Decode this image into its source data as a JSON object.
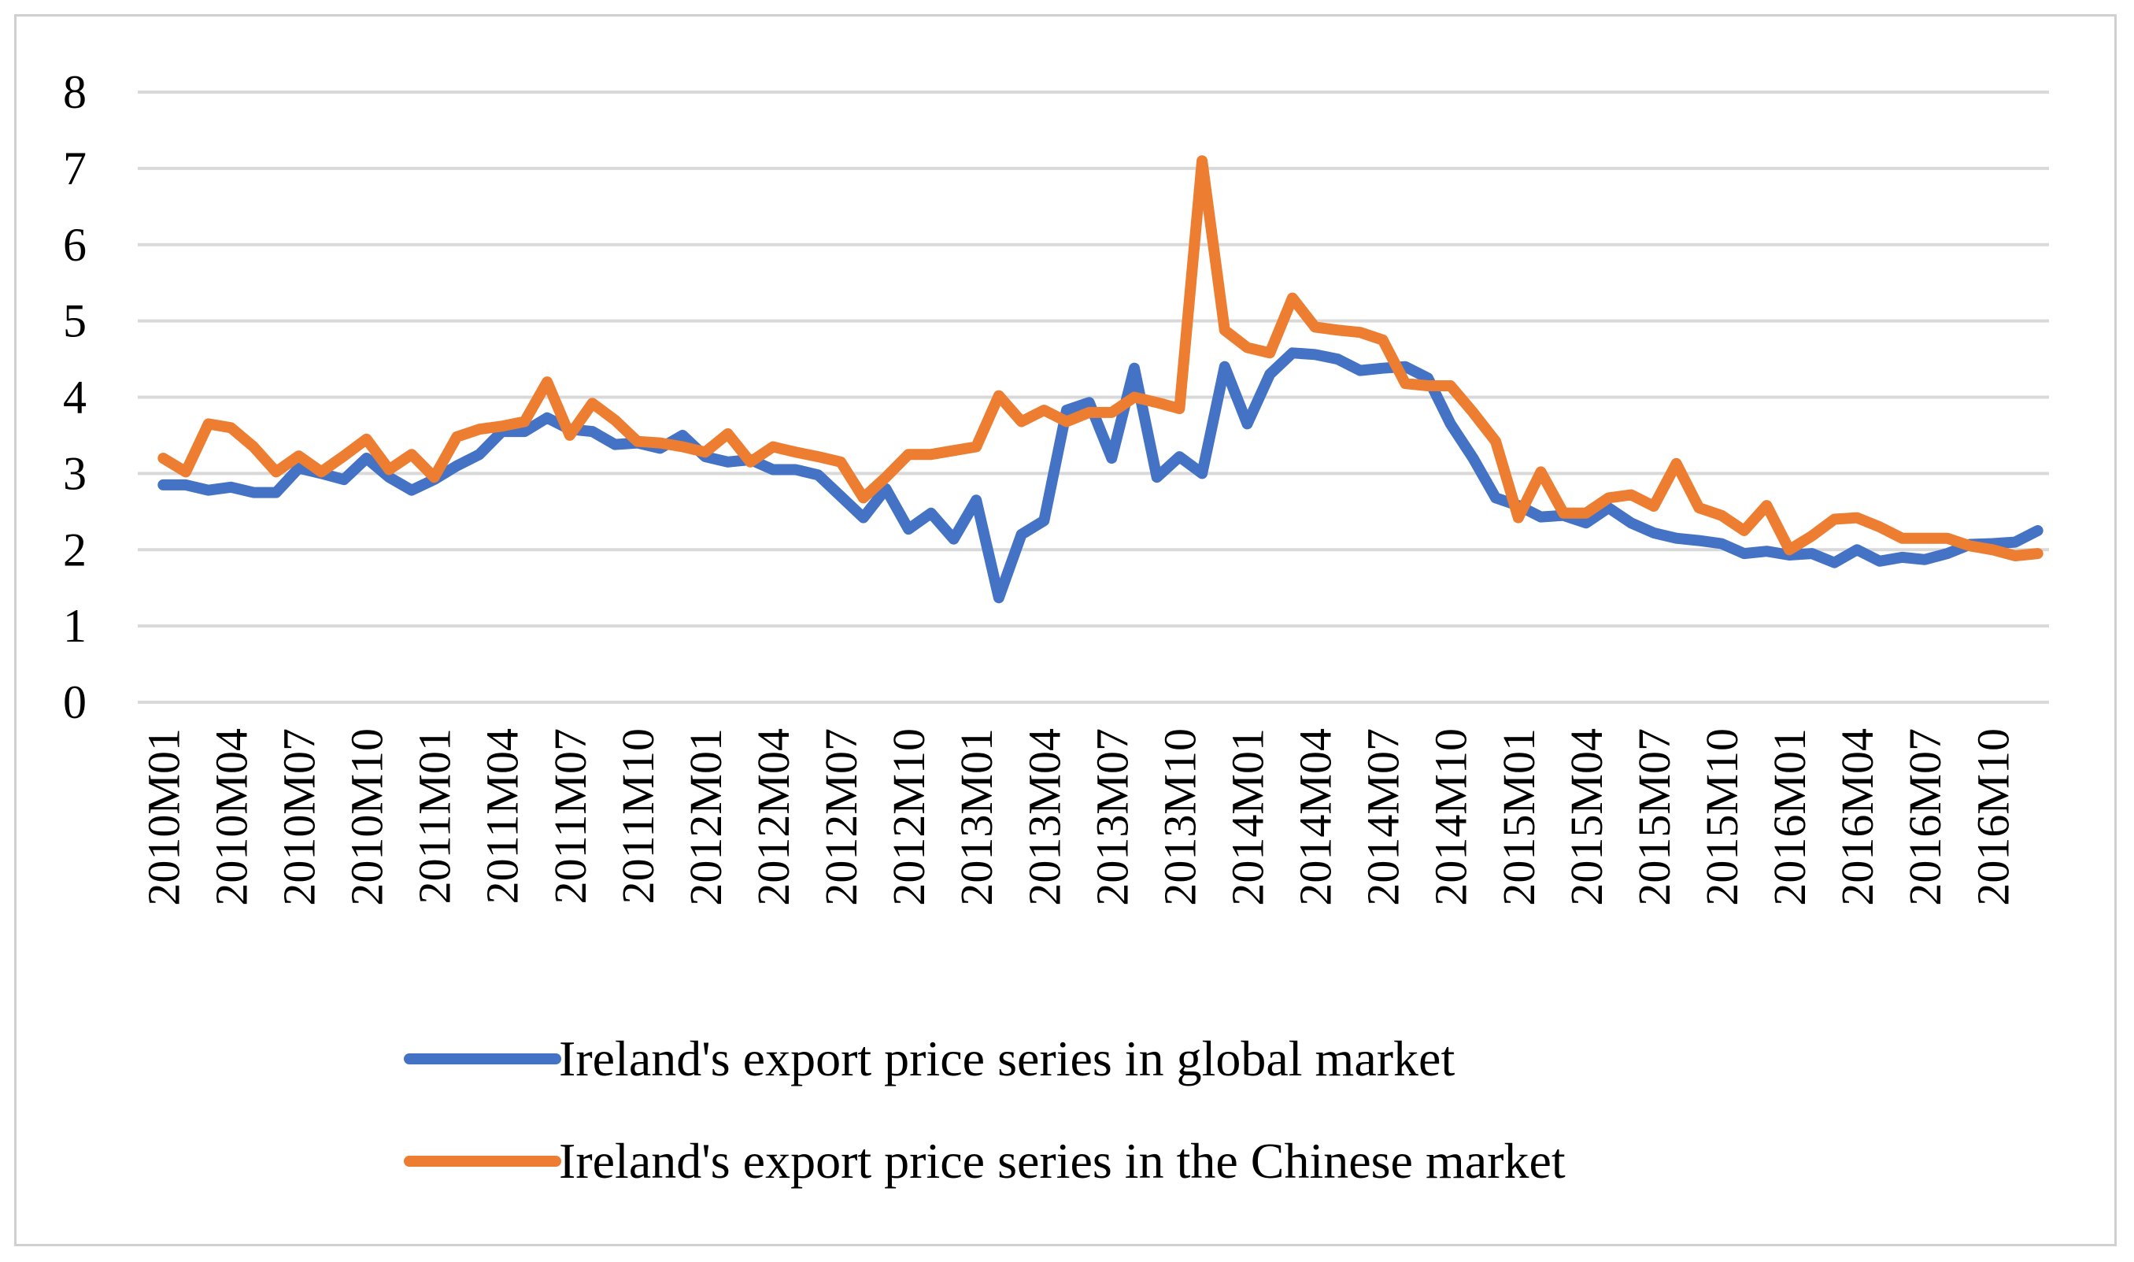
{
  "chart_data": {
    "type": "line",
    "title": "",
    "xlabel": "",
    "ylabel": "",
    "ylim": [
      0,
      8
    ],
    "yticks": [
      "0",
      "1",
      "2",
      "3",
      "4",
      "5",
      "6",
      "7",
      "8"
    ],
    "grid": true,
    "legend_position": "bottom",
    "x_tick_labels": [
      "2010M01",
      "2010M04",
      "2010M07",
      "2010M10",
      "2011M01",
      "2011M04",
      "2011M07",
      "2011M10",
      "2012M01",
      "2012M04",
      "2012M07",
      "2012M10",
      "2013M01",
      "2013M04",
      "2013M07",
      "2013M10",
      "2014M01",
      "2014M04",
      "2014M07",
      "2014M10",
      "2015M01",
      "2015M04",
      "2015M07",
      "2015M10",
      "2016M01",
      "2016M04",
      "2016M07",
      "2016M10"
    ],
    "x_tick_step": 3,
    "x_count": 84,
    "series": [
      {
        "name": "Ireland's export price series in global market",
        "color": "#4472C4",
        "values": [
          2.85,
          2.85,
          2.78,
          2.82,
          2.75,
          2.75,
          3.07,
          3.0,
          2.92,
          3.2,
          2.95,
          2.78,
          2.92,
          3.1,
          3.25,
          3.55,
          3.55,
          3.73,
          3.58,
          3.55,
          3.38,
          3.4,
          3.33,
          3.5,
          3.22,
          3.15,
          3.18,
          3.05,
          3.05,
          2.98,
          2.7,
          2.42,
          2.8,
          2.27,
          2.48,
          2.14,
          2.65,
          1.37,
          2.2,
          2.38,
          3.83,
          3.93,
          3.2,
          4.38,
          2.95,
          3.22,
          3.0,
          4.4,
          3.65,
          4.3,
          4.58,
          4.56,
          4.5,
          4.35,
          4.38,
          4.4,
          4.25,
          3.65,
          3.2,
          2.68,
          2.58,
          2.43,
          2.45,
          2.35,
          2.55,
          2.35,
          2.22,
          2.15,
          2.12,
          2.08,
          1.95,
          1.98,
          1.93,
          1.95,
          1.83,
          2.0,
          1.85,
          1.9,
          1.87,
          1.95,
          2.07,
          2.08,
          2.1,
          2.25
        ]
      },
      {
        "name": "Ireland's export price series in the Chinese market",
        "color": "#ED7D31",
        "values": [
          3.2,
          3.02,
          3.65,
          3.6,
          3.35,
          3.02,
          3.23,
          3.02,
          3.23,
          3.45,
          3.05,
          3.25,
          2.95,
          3.48,
          3.58,
          3.62,
          3.68,
          4.2,
          3.5,
          3.92,
          3.7,
          3.42,
          3.4,
          3.35,
          3.28,
          3.52,
          3.15,
          3.35,
          3.28,
          3.22,
          3.15,
          2.68,
          2.95,
          3.25,
          3.25,
          3.3,
          3.35,
          4.02,
          3.68,
          3.83,
          3.68,
          3.8,
          3.8,
          4.0,
          3.93,
          3.85,
          7.1,
          4.88,
          4.65,
          4.58,
          5.3,
          4.92,
          4.88,
          4.85,
          4.75,
          4.18,
          4.15,
          4.15,
          3.8,
          3.42,
          2.42,
          3.02,
          2.48,
          2.48,
          2.68,
          2.72,
          2.57,
          3.13,
          2.55,
          2.45,
          2.25,
          2.58,
          2.0,
          2.18,
          2.4,
          2.42,
          2.3,
          2.15,
          2.15,
          2.15,
          2.05,
          2.0,
          1.92,
          1.95
        ]
      }
    ]
  }
}
